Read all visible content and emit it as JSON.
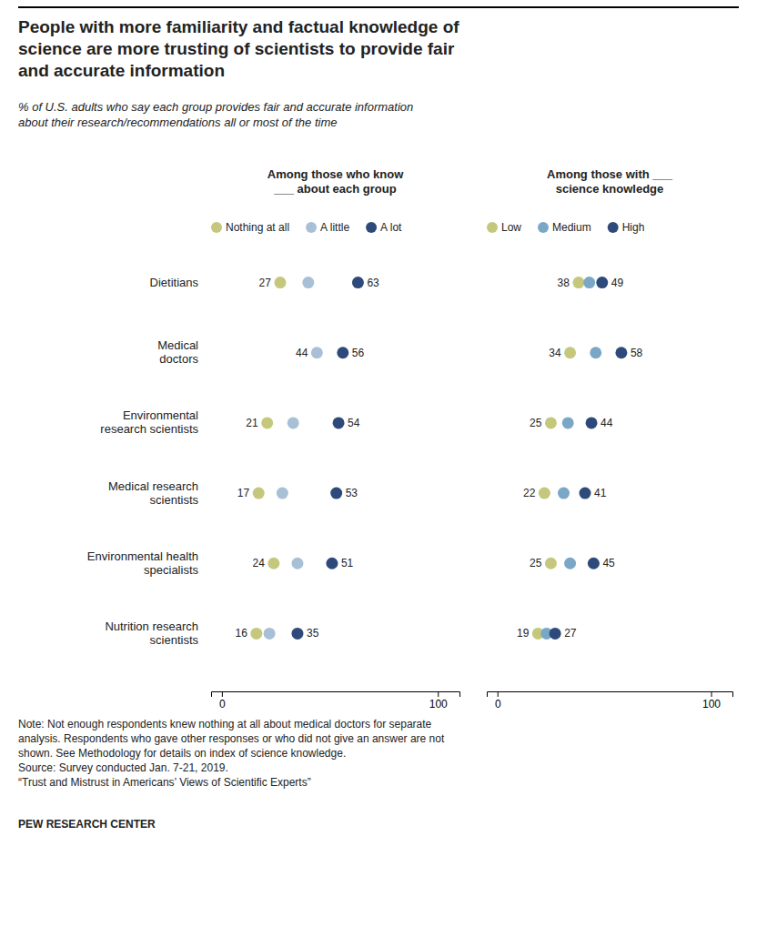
{
  "chart_data": {
    "type": "dot",
    "title": "People with more familiarity and factual knowledge of\nscience are more trusting of scientists to provide fair\nand accurate information",
    "subtitle": "% of U.S. adults who say each group provides fair and accurate information\nabout their research/recommendations all or most of the time",
    "note": "Note: Not enough respondents knew nothing at all about medical doctors for separate\nanalysis. Respondents who gave other responses or who did not give an answer are not\nshown. See Methodology for details on index of science knowledge.\nSource: Survey conducted Jan. 7-21, 2019.\n“Trust and Mistrust in Americans’ Views of Scientific Experts”",
    "source": "PEW RESEARCH CENTER",
    "categories": [
      "Dietitians",
      "Medical\ndoctors",
      "Environmental\nresearch scientists",
      "Medical research\nscientists",
      "Environmental health\nspecialists",
      "Nutrition research\nscientists"
    ],
    "panels": [
      {
        "title": "Among those who know\n___ about each group",
        "xlim": [
          -5,
          110
        ],
        "xticks": [
          0,
          100
        ],
        "grid": false,
        "legend": "top",
        "data_labels": true,
        "series": [
          {
            "name": "Nothing at all",
            "color": "#c5c87c",
            "values": [
              27,
              null,
              21,
              17,
              24,
              16
            ],
            "value_labels": [
              "27",
              null,
              "21",
              "17",
              "24",
              "16"
            ]
          },
          {
            "name": "A little",
            "color": "#a8c0d6",
            "values": [
              40,
              44,
              33,
              28,
              35,
              22
            ],
            "value_labels": [
              null,
              "44",
              null,
              null,
              null,
              null
            ]
          },
          {
            "name": "A lot",
            "color": "#2d4a7a",
            "values": [
              63,
              56,
              54,
              53,
              51,
              35
            ],
            "value_labels": [
              "63",
              "56",
              "54",
              "53",
              "51",
              "35"
            ]
          }
        ]
      },
      {
        "title": "Among those with ___\nscience knowledge",
        "xlim": [
          -5,
          110
        ],
        "xticks": [
          0,
          100
        ],
        "grid": false,
        "legend": "top",
        "data_labels": true,
        "series": [
          {
            "name": "Low",
            "color": "#c5c87c",
            "values": [
              38,
              34,
              25,
              22,
              25,
              19
            ],
            "value_labels": [
              "38",
              "34",
              "25",
              "22",
              "25",
              "19"
            ]
          },
          {
            "name": "Medium",
            "color": "#7ba7c7",
            "values": [
              43,
              46,
              33,
              31,
              34,
              23
            ]
          },
          {
            "name": "High",
            "color": "#2d4a7a",
            "values": [
              49,
              58,
              44,
              41,
              45,
              27
            ],
            "value_labels": [
              "49",
              "58",
              "44",
              "41",
              "45",
              "27"
            ]
          }
        ]
      }
    ]
  }
}
